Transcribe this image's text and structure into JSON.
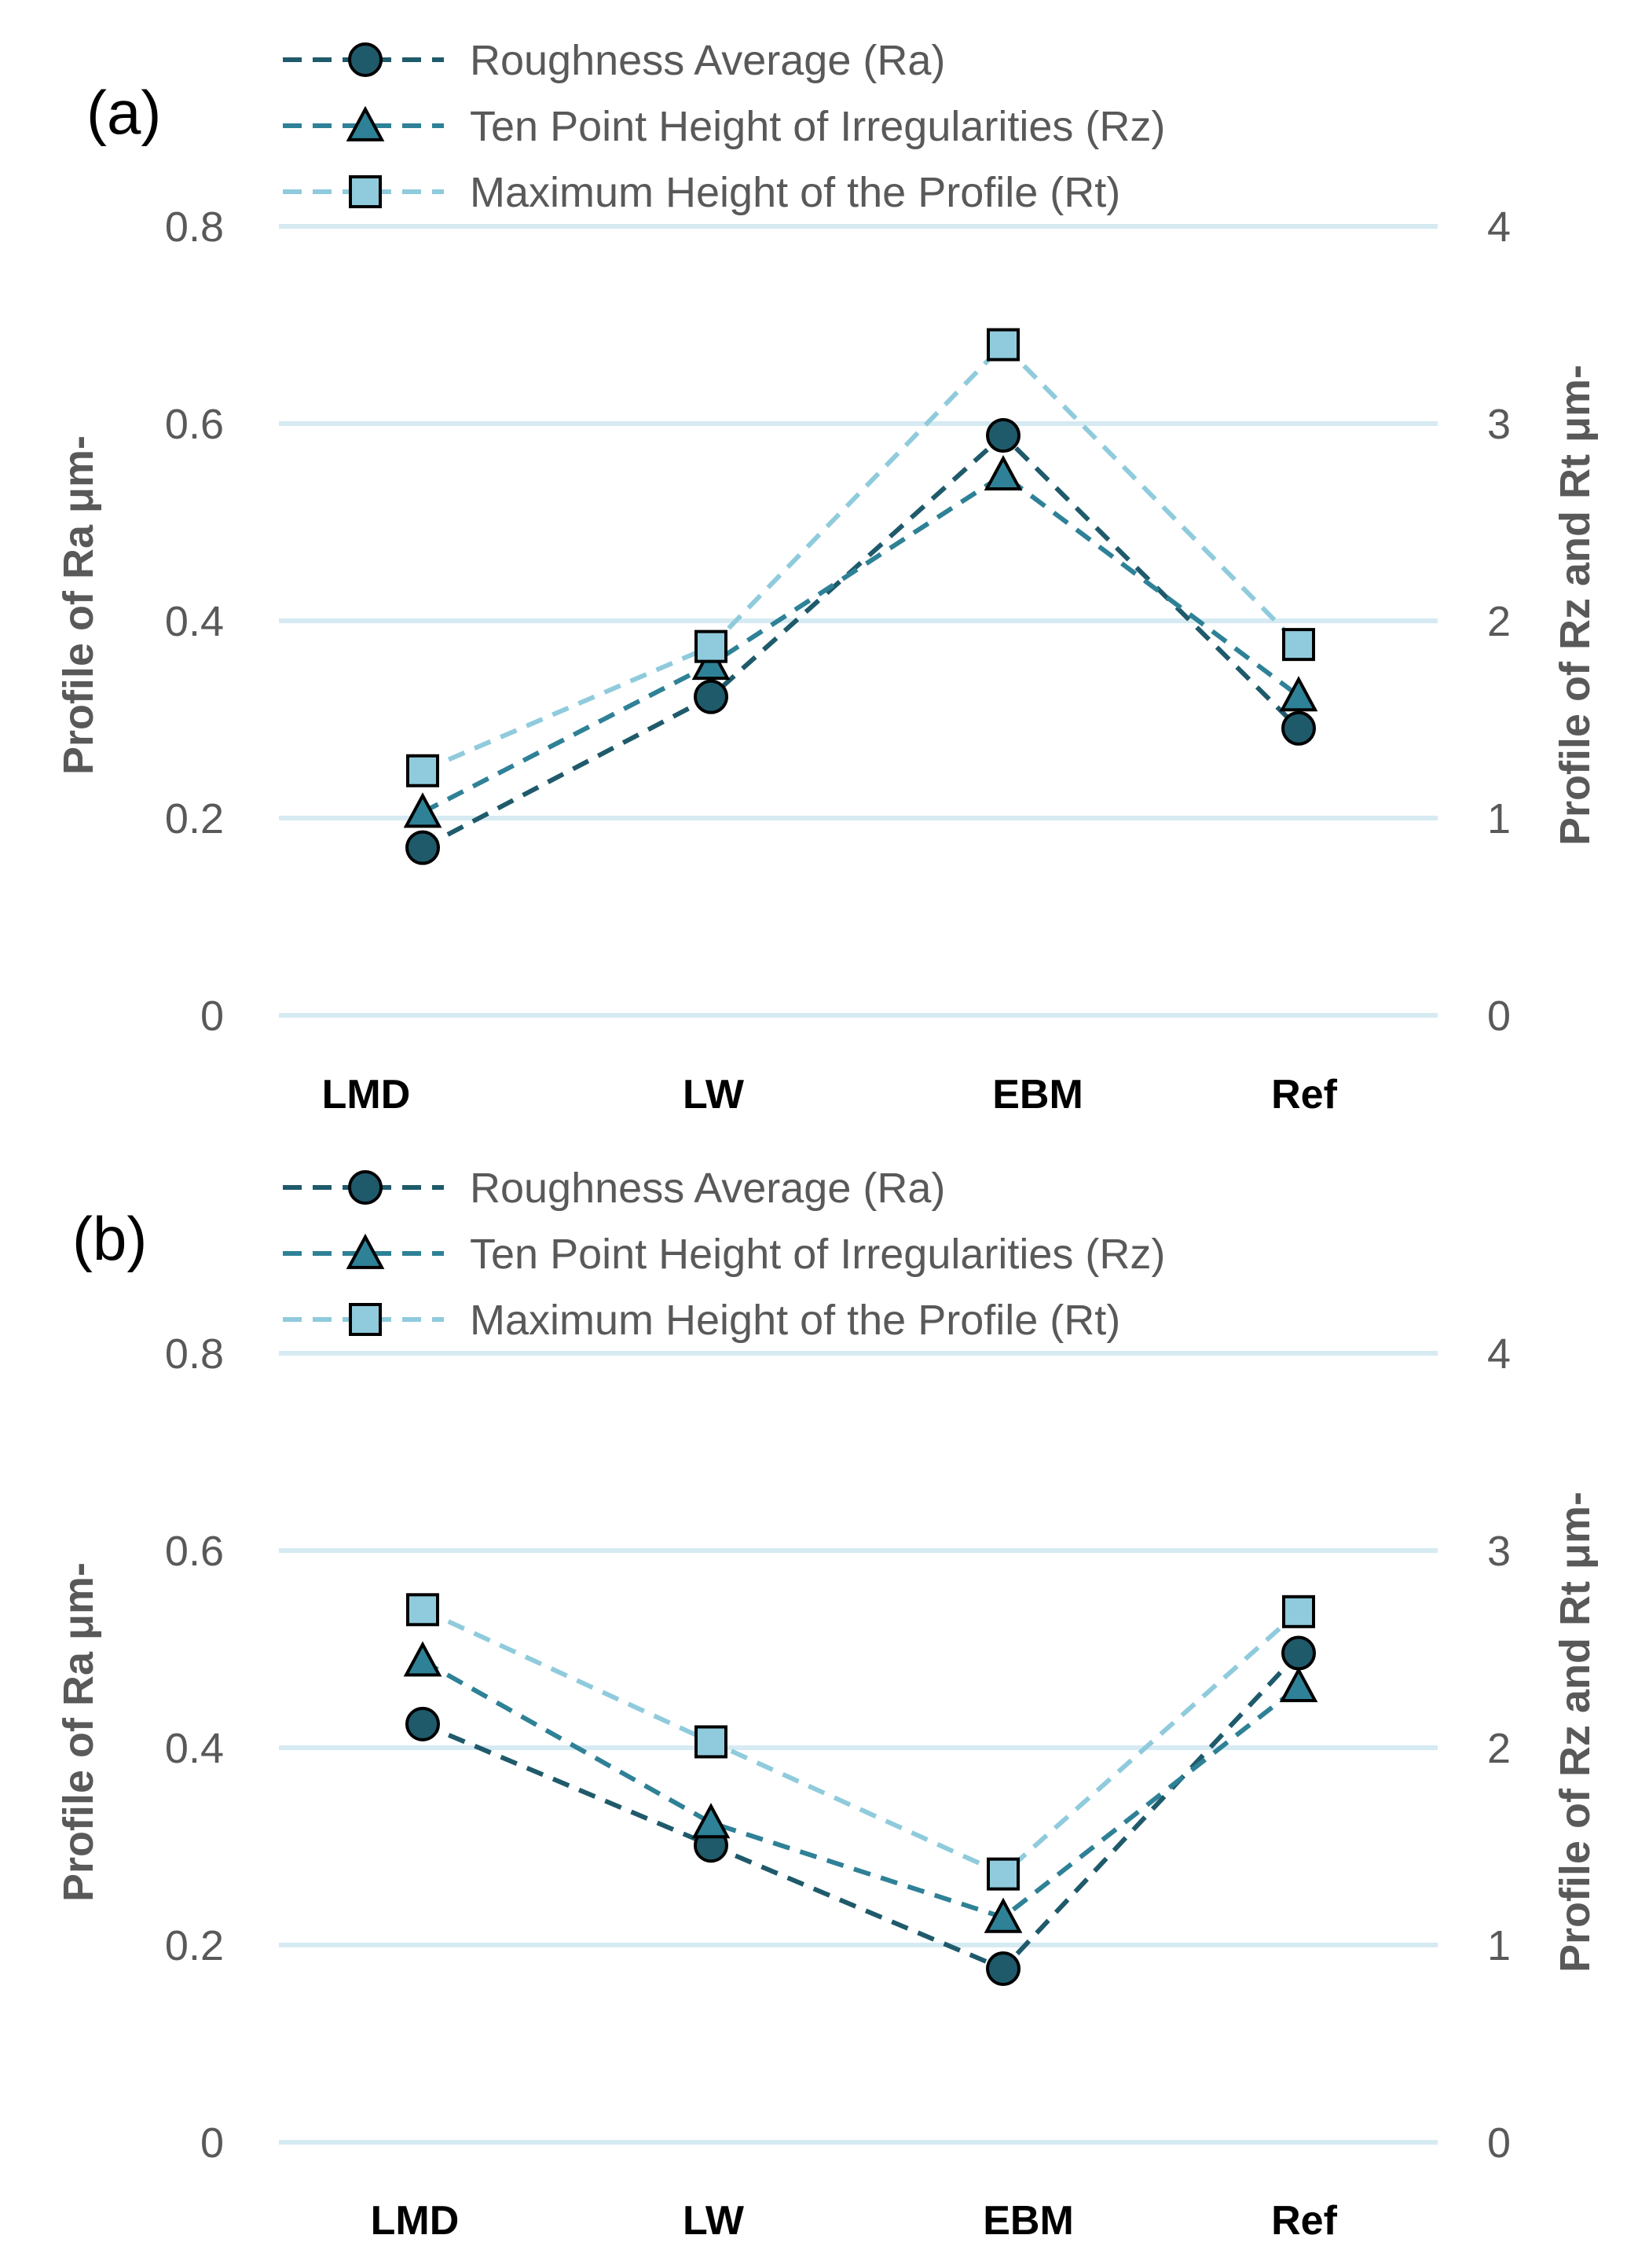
{
  "chart_data": [
    {
      "type": "line",
      "panel_label": "(a)",
      "categories": [
        "LMD",
        "LW",
        "EBM",
        "Ref"
      ],
      "series": [
        {
          "name": "Roughness Average (Ra)",
          "axis": "left",
          "marker": "circle",
          "color": "#1f5a6b",
          "values": [
            0.17,
            0.323,
            0.588,
            0.291
          ]
        },
        {
          "name": "Ten Point Height of Irregularities (Rz)",
          "axis": "right",
          "marker": "triangle",
          "color": "#2e8196",
          "values": [
            1.03,
            1.78,
            2.74,
            1.62
          ]
        },
        {
          "name": "Maximum Height of the Profile (Rt)",
          "axis": "right",
          "marker": "square",
          "color": "#8fcbdc",
          "values": [
            1.24,
            1.87,
            3.4,
            1.88
          ]
        }
      ],
      "ylabel_left": "Profile of Ra  μm-",
      "ylabel_right": "Profile of Rz and Rt  μm-",
      "yticks_left": [
        "0",
        "0.2",
        "0.4",
        "0.6",
        "0.8"
      ],
      "yticks_right": [
        "0",
        "1",
        "2",
        "3",
        "4"
      ],
      "ylim_left": [
        0,
        0.8
      ],
      "ylim_right": [
        0,
        4
      ],
      "grid": true,
      "legend": "top"
    },
    {
      "type": "line",
      "panel_label": "(b)",
      "categories": [
        "LMD",
        "LW",
        "EBM",
        "Ref"
      ],
      "series": [
        {
          "name": "Roughness Average (Ra)",
          "axis": "left",
          "marker": "circle",
          "color": "#1f5a6b",
          "values": [
            0.424,
            0.301,
            0.176,
            0.496
          ]
        },
        {
          "name": "Ten Point Height of Irregularities (Rz)",
          "axis": "right",
          "marker": "triangle",
          "color": "#2e8196",
          "values": [
            2.44,
            1.62,
            1.14,
            2.31
          ]
        },
        {
          "name": "Maximum Height of the Profile (Rt)",
          "axis": "right",
          "marker": "square",
          "color": "#8fcbdc",
          "values": [
            2.7,
            2.03,
            1.36,
            2.69
          ]
        }
      ],
      "ylabel_left": "Profile of Ra  μm-",
      "ylabel_right": "Profile of Rz and Rt  μm-",
      "yticks_left": [
        "0",
        "0.2",
        "0.4",
        "0.6",
        "0.8"
      ],
      "yticks_right": [
        "0",
        "1",
        "2",
        "3",
        "4"
      ],
      "ylim_left": [
        0,
        0.8
      ],
      "ylim_right": [
        0,
        4
      ],
      "grid": true,
      "legend": "top"
    }
  ],
  "colors": {
    "grid": "#d6eaf2",
    "marker_stroke": "#000000"
  }
}
